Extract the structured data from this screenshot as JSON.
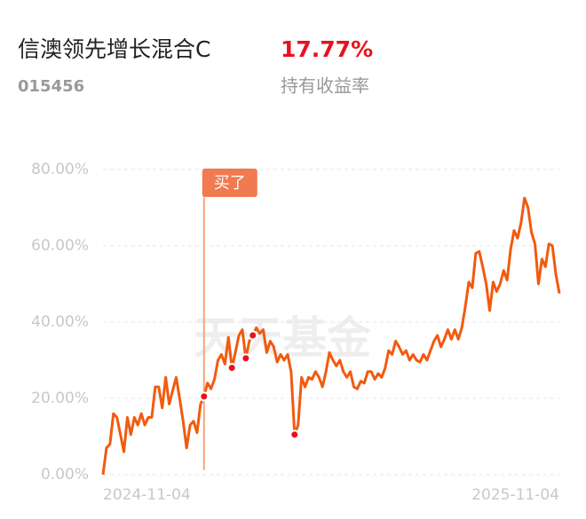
{
  "header": {
    "title": "信澳领先增长混合C",
    "code": "015456",
    "return": "17.77%",
    "return_label": "持有收益率"
  },
  "chart_data": {
    "type": "line",
    "watermark": "天天基金",
    "buy_label": "买了",
    "buy_index": 29,
    "trade_points": [
      29,
      37,
      41,
      43,
      55
    ],
    "categories": [
      "2024-11-04",
      null,
      null,
      null,
      null,
      null,
      null,
      null,
      null,
      null,
      null,
      null,
      null,
      null,
      null,
      null,
      null,
      null,
      null,
      null,
      null,
      null,
      null,
      null,
      null,
      null,
      null,
      null,
      null,
      null,
      null,
      null,
      null,
      null,
      null,
      null,
      null,
      null,
      null,
      null,
      null,
      null,
      null,
      null,
      null,
      null,
      null,
      null,
      null,
      null,
      null,
      null,
      null,
      null,
      null,
      null,
      null,
      null,
      null,
      null,
      null,
      null,
      null,
      null,
      null,
      null,
      null,
      null,
      null,
      null,
      null,
      null,
      null,
      null,
      null,
      null,
      null,
      null,
      null,
      null,
      null,
      null,
      null,
      null,
      null,
      null,
      null,
      null,
      null,
      null,
      null,
      null,
      null,
      null,
      null,
      null,
      null,
      null,
      null,
      null,
      null,
      null,
      null,
      null,
      null,
      null,
      null,
      null,
      null,
      null,
      null,
      null,
      null,
      null,
      null,
      null,
      null,
      null,
      null,
      null,
      null,
      null,
      null,
      null,
      null,
      null,
      null,
      null,
      null,
      null,
      null,
      "2025-11-04"
    ],
    "series": [
      {
        "name": "持有收益率",
        "color": "#f25a0f",
        "values": [
          0,
          7,
          8,
          16,
          15,
          10.5,
          6,
          15,
          10.5,
          15,
          13,
          16,
          13,
          15,
          15,
          23,
          23,
          17.5,
          25.5,
          18.5,
          22,
          25.5,
          20,
          14,
          7,
          13,
          14,
          11,
          18.5,
          20.5,
          24,
          22.5,
          25,
          30,
          31.5,
          29,
          36,
          28,
          32,
          36.5,
          38,
          30.5,
          35,
          36.5,
          38.5,
          37,
          38,
          32,
          35,
          33.5,
          29.5,
          31.5,
          30,
          31.5,
          27,
          10.5,
          13,
          25.5,
          23,
          25.5,
          25,
          27,
          25.5,
          23,
          27,
          32,
          30,
          28.5,
          30,
          27,
          25.5,
          27,
          23,
          22.5,
          24.5,
          24,
          27,
          27,
          25,
          26.5,
          25.5,
          28,
          32.5,
          31.5,
          35,
          33.5,
          31.5,
          32.5,
          30,
          31.5,
          30,
          29.5,
          31.5,
          30,
          32.5,
          35,
          36.5,
          33.5,
          35.5,
          38,
          35.5,
          38,
          35.5,
          38.5,
          44,
          50.5,
          49,
          58,
          58.5,
          54.5,
          50,
          43,
          50.5,
          48,
          50,
          53.5,
          51,
          59,
          64,
          62,
          66,
          72.5,
          70,
          63.5,
          60.5,
          50,
          56.5,
          54.5,
          60.5,
          60,
          52.5,
          47.5
        ]
      }
    ],
    "ylim": [
      0,
      80
    ],
    "yticks": [
      {
        "value": 0,
        "label": "0.00%"
      },
      {
        "value": 20,
        "label": "20.00%"
      },
      {
        "value": 40,
        "label": "40.00%"
      },
      {
        "value": 60,
        "label": "60.00%"
      },
      {
        "value": 80,
        "label": "80.00%"
      }
    ],
    "grid": true
  }
}
